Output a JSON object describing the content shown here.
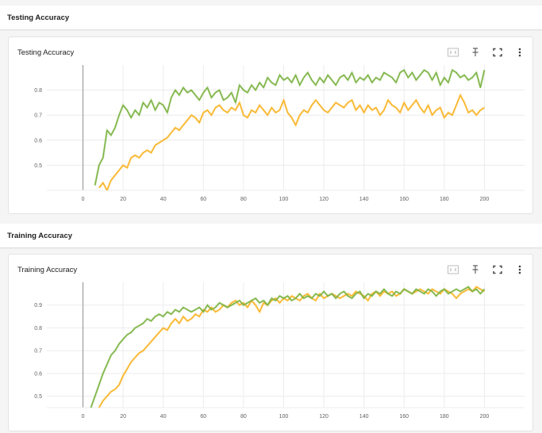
{
  "sections": {
    "testing_header": "Testing Accuracy",
    "training_header": "Training Accuracy"
  },
  "cards": {
    "testing_title": "Testing Accuracy",
    "training_title": "Training Accuracy"
  },
  "toolbar_icons": [
    "fit-domain-icon",
    "pin-icon",
    "fullscreen-icon",
    "more-vert-icon"
  ],
  "colors": {
    "series_orange": "#f9b323",
    "series_green": "#7cb342",
    "grid": "#ececec",
    "axis_zero": "#9e9e9e"
  },
  "chart_data": [
    {
      "type": "line",
      "title": "Testing Accuracy",
      "xlim": [
        -18,
        220
      ],
      "ylim": [
        0.4,
        0.9
      ],
      "xticks": [
        0,
        20,
        40,
        60,
        80,
        100,
        120,
        140,
        160,
        180,
        200
      ],
      "yticks": [
        0.5,
        0.6,
        0.7,
        0.8
      ],
      "grid": true,
      "series": [
        {
          "color": "#f9b323",
          "x": [
            8,
            10,
            12,
            14,
            16,
            18,
            20,
            22,
            24,
            26,
            28,
            30,
            32,
            34,
            36,
            38,
            40,
            42,
            44,
            46,
            48,
            50,
            52,
            54,
            56,
            58,
            60,
            62,
            64,
            66,
            68,
            70,
            72,
            74,
            76,
            78,
            80,
            82,
            84,
            86,
            88,
            90,
            92,
            94,
            96,
            98,
            100,
            102,
            104,
            106,
            108,
            110,
            112,
            114,
            116,
            118,
            120,
            122,
            124,
            126,
            128,
            130,
            132,
            134,
            136,
            138,
            140,
            142,
            144,
            146,
            148,
            150,
            152,
            154,
            156,
            158,
            160,
            162,
            164,
            166,
            168,
            170,
            172,
            174,
            176,
            178,
            180,
            182,
            184,
            186,
            188,
            190,
            192,
            194,
            196,
            198,
            200
          ],
          "y": [
            0.41,
            0.43,
            0.4,
            0.44,
            0.46,
            0.48,
            0.5,
            0.49,
            0.53,
            0.54,
            0.53,
            0.55,
            0.56,
            0.55,
            0.58,
            0.59,
            0.6,
            0.61,
            0.63,
            0.65,
            0.64,
            0.66,
            0.68,
            0.7,
            0.69,
            0.67,
            0.71,
            0.72,
            0.7,
            0.73,
            0.74,
            0.72,
            0.71,
            0.73,
            0.72,
            0.75,
            0.7,
            0.69,
            0.72,
            0.71,
            0.74,
            0.72,
            0.7,
            0.73,
            0.71,
            0.72,
            0.76,
            0.71,
            0.69,
            0.66,
            0.7,
            0.72,
            0.71,
            0.74,
            0.76,
            0.74,
            0.72,
            0.71,
            0.73,
            0.75,
            0.74,
            0.73,
            0.75,
            0.76,
            0.72,
            0.74,
            0.71,
            0.74,
            0.72,
            0.73,
            0.7,
            0.72,
            0.76,
            0.74,
            0.73,
            0.71,
            0.75,
            0.72,
            0.74,
            0.76,
            0.73,
            0.71,
            0.74,
            0.7,
            0.72,
            0.73,
            0.69,
            0.71,
            0.7,
            0.74,
            0.78,
            0.75,
            0.71,
            0.72,
            0.7,
            0.72,
            0.73
          ]
        },
        {
          "color": "#7cb342",
          "x": [
            6,
            8,
            10,
            12,
            14,
            16,
            18,
            20,
            22,
            24,
            26,
            28,
            30,
            32,
            34,
            36,
            38,
            40,
            42,
            44,
            46,
            48,
            50,
            52,
            54,
            56,
            58,
            60,
            62,
            64,
            66,
            68,
            70,
            72,
            74,
            76,
            78,
            80,
            82,
            84,
            86,
            88,
            90,
            92,
            94,
            96,
            98,
            100,
            102,
            104,
            106,
            108,
            110,
            112,
            114,
            116,
            118,
            120,
            122,
            124,
            126,
            128,
            130,
            132,
            134,
            136,
            138,
            140,
            142,
            144,
            146,
            148,
            150,
            152,
            154,
            156,
            158,
            160,
            162,
            164,
            166,
            168,
            170,
            172,
            174,
            176,
            178,
            180,
            182,
            184,
            186,
            188,
            190,
            192,
            194,
            196,
            198,
            200
          ],
          "y": [
            0.42,
            0.5,
            0.53,
            0.64,
            0.62,
            0.65,
            0.7,
            0.74,
            0.72,
            0.69,
            0.72,
            0.7,
            0.75,
            0.73,
            0.76,
            0.72,
            0.75,
            0.74,
            0.71,
            0.77,
            0.8,
            0.78,
            0.81,
            0.79,
            0.8,
            0.78,
            0.76,
            0.79,
            0.81,
            0.77,
            0.79,
            0.8,
            0.76,
            0.77,
            0.79,
            0.75,
            0.82,
            0.8,
            0.79,
            0.82,
            0.8,
            0.83,
            0.81,
            0.85,
            0.83,
            0.82,
            0.86,
            0.84,
            0.85,
            0.83,
            0.86,
            0.82,
            0.85,
            0.87,
            0.84,
            0.82,
            0.85,
            0.83,
            0.86,
            0.84,
            0.82,
            0.85,
            0.86,
            0.84,
            0.87,
            0.83,
            0.85,
            0.84,
            0.86,
            0.83,
            0.85,
            0.84,
            0.87,
            0.86,
            0.85,
            0.83,
            0.87,
            0.88,
            0.85,
            0.87,
            0.84,
            0.86,
            0.88,
            0.87,
            0.84,
            0.87,
            0.82,
            0.85,
            0.83,
            0.88,
            0.87,
            0.85,
            0.86,
            0.84,
            0.85,
            0.87,
            0.81,
            0.88
          ]
        }
      ]
    },
    {
      "type": "line",
      "title": "Training Accuracy",
      "xlim": [
        -18,
        220
      ],
      "ylim": [
        0.45,
        1.0
      ],
      "xticks": [
        0,
        20,
        40,
        60,
        80,
        100,
        120,
        140,
        160,
        180,
        200
      ],
      "yticks": [
        0.5,
        0.6,
        0.7,
        0.8,
        0.9
      ],
      "grid": true,
      "series": [
        {
          "color": "#f9b323",
          "x": [
            8,
            10,
            12,
            14,
            16,
            18,
            20,
            22,
            24,
            26,
            28,
            30,
            32,
            34,
            36,
            38,
            40,
            42,
            44,
            46,
            48,
            50,
            52,
            54,
            56,
            58,
            60,
            62,
            64,
            66,
            68,
            70,
            72,
            74,
            76,
            78,
            80,
            82,
            84,
            86,
            88,
            90,
            92,
            94,
            96,
            98,
            100,
            102,
            104,
            106,
            108,
            110,
            112,
            114,
            116,
            118,
            120,
            122,
            124,
            126,
            128,
            130,
            132,
            134,
            136,
            138,
            140,
            142,
            144,
            146,
            148,
            150,
            152,
            154,
            156,
            158,
            160,
            162,
            164,
            166,
            168,
            170,
            172,
            174,
            176,
            178,
            180,
            182,
            184,
            186,
            188,
            190,
            192,
            194,
            196,
            198,
            200
          ],
          "y": [
            0.45,
            0.48,
            0.5,
            0.52,
            0.53,
            0.55,
            0.59,
            0.62,
            0.65,
            0.67,
            0.69,
            0.7,
            0.72,
            0.74,
            0.76,
            0.78,
            0.8,
            0.79,
            0.82,
            0.84,
            0.82,
            0.85,
            0.83,
            0.84,
            0.86,
            0.85,
            0.88,
            0.87,
            0.89,
            0.87,
            0.88,
            0.9,
            0.89,
            0.91,
            0.92,
            0.9,
            0.91,
            0.89,
            0.92,
            0.9,
            0.87,
            0.91,
            0.9,
            0.92,
            0.93,
            0.91,
            0.93,
            0.92,
            0.94,
            0.93,
            0.92,
            0.94,
            0.95,
            0.93,
            0.92,
            0.95,
            0.93,
            0.94,
            0.95,
            0.94,
            0.93,
            0.94,
            0.95,
            0.94,
            0.96,
            0.95,
            0.94,
            0.92,
            0.95,
            0.96,
            0.94,
            0.96,
            0.95,
            0.96,
            0.94,
            0.95,
            0.97,
            0.96,
            0.95,
            0.96,
            0.97,
            0.96,
            0.95,
            0.97,
            0.96,
            0.95,
            0.97,
            0.96,
            0.95,
            0.93,
            0.95,
            0.96,
            0.97,
            0.96,
            0.98,
            0.97,
            0.96
          ]
        },
        {
          "color": "#7cb342",
          "x": [
            4,
            6,
            8,
            10,
            12,
            14,
            16,
            18,
            20,
            22,
            24,
            26,
            28,
            30,
            32,
            34,
            36,
            38,
            40,
            42,
            44,
            46,
            48,
            50,
            52,
            54,
            56,
            58,
            60,
            62,
            64,
            66,
            68,
            70,
            72,
            74,
            76,
            78,
            80,
            82,
            84,
            86,
            88,
            90,
            92,
            94,
            96,
            98,
            100,
            102,
            104,
            106,
            108,
            110,
            112,
            114,
            116,
            118,
            120,
            122,
            124,
            126,
            128,
            130,
            132,
            134,
            136,
            138,
            140,
            142,
            144,
            146,
            148,
            150,
            152,
            154,
            156,
            158,
            160,
            162,
            164,
            166,
            168,
            170,
            172,
            174,
            176,
            178,
            180,
            182,
            184,
            186,
            188,
            190,
            192,
            194,
            196,
            198,
            200
          ],
          "y": [
            0.45,
            0.5,
            0.55,
            0.6,
            0.64,
            0.68,
            0.7,
            0.73,
            0.75,
            0.77,
            0.78,
            0.8,
            0.81,
            0.82,
            0.84,
            0.83,
            0.85,
            0.86,
            0.85,
            0.87,
            0.86,
            0.88,
            0.87,
            0.89,
            0.88,
            0.87,
            0.88,
            0.89,
            0.87,
            0.9,
            0.88,
            0.89,
            0.91,
            0.9,
            0.89,
            0.9,
            0.91,
            0.92,
            0.9,
            0.91,
            0.92,
            0.93,
            0.91,
            0.92,
            0.9,
            0.93,
            0.92,
            0.94,
            0.93,
            0.94,
            0.92,
            0.93,
            0.95,
            0.93,
            0.94,
            0.93,
            0.95,
            0.94,
            0.96,
            0.94,
            0.95,
            0.93,
            0.95,
            0.96,
            0.94,
            0.93,
            0.95,
            0.96,
            0.93,
            0.95,
            0.94,
            0.96,
            0.95,
            0.97,
            0.95,
            0.94,
            0.96,
            0.95,
            0.97,
            0.96,
            0.95,
            0.97,
            0.96,
            0.95,
            0.97,
            0.96,
            0.94,
            0.96,
            0.97,
            0.95,
            0.96,
            0.97,
            0.96,
            0.97,
            0.98,
            0.96,
            0.97,
            0.95,
            0.97
          ]
        }
      ]
    }
  ]
}
